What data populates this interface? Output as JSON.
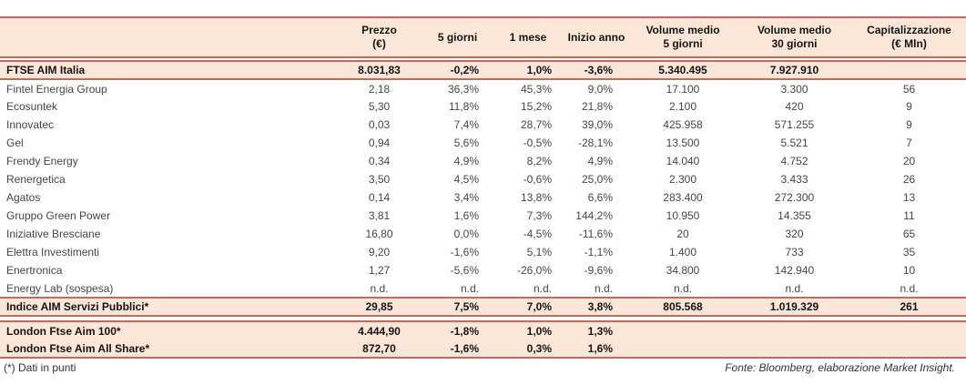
{
  "colors": {
    "accent_border": "#c5695a",
    "row_highlight_bg": "#fce6d7"
  },
  "table": {
    "columns": [
      {
        "id": "name",
        "lines": [
          "",
          ""
        ]
      },
      {
        "id": "prezzo",
        "lines": [
          "Prezzo",
          "(€)"
        ]
      },
      {
        "id": "cinque_giorni",
        "lines": [
          "5 giorni"
        ]
      },
      {
        "id": "un_mese",
        "lines": [
          "1 mese"
        ]
      },
      {
        "id": "inizio_anno",
        "lines": [
          "Inizio anno"
        ]
      },
      {
        "id": "volume_medio_5",
        "lines": [
          "Volume medio",
          "5 giorni"
        ]
      },
      {
        "id": "volume_medio_30",
        "lines": [
          "Volume medio",
          "30 giorni"
        ]
      },
      {
        "id": "capitalizzazione",
        "lines": [
          "Capitalizzazione",
          "(€ Mln)"
        ]
      }
    ],
    "sections": [
      {
        "style": "highlight",
        "gap_before": 4,
        "rows": [
          [
            "FTSE AIM Italia",
            "8.031,83",
            "-0,2%",
            "1,0%",
            "-3,6%",
            "5.340.495",
            "7.927.910",
            ""
          ]
        ]
      },
      {
        "style": "plain",
        "gap_before": 0,
        "rows": [
          [
            "Fintel Energia Group",
            "2,18",
            "36,3%",
            "45,3%",
            "9,0%",
            "17.100",
            "3.300",
            "56"
          ],
          [
            "Ecosuntek",
            "5,30",
            "11,8%",
            "15,2%",
            "21,8%",
            "2.100",
            "420",
            "9"
          ],
          [
            "Innovatec",
            "0,03",
            "7,4%",
            "28,7%",
            "39,0%",
            "425.958",
            "571.255",
            "9"
          ],
          [
            "Gel",
            "0,94",
            "5,6%",
            "-0,5%",
            "-28,1%",
            "13.500",
            "5.521",
            "7"
          ],
          [
            "Frendy Energy",
            "0,34",
            "4,9%",
            "8,2%",
            "4,9%",
            "14.040",
            "4.752",
            "20"
          ],
          [
            "Renergetica",
            "3,50",
            "4,5%",
            "-0,6%",
            "25,0%",
            "2.300",
            "3.433",
            "26"
          ],
          [
            "Agatos",
            "0,14",
            "3,4%",
            "13,8%",
            "6,6%",
            "283.400",
            "272.300",
            "13"
          ],
          [
            "Gruppo Green Power",
            "3,81",
            "1,6%",
            "7,3%",
            "144,2%",
            "10.950",
            "14.355",
            "11"
          ],
          [
            "Iniziative Bresciane",
            "16,80",
            "0,0%",
            "-4,5%",
            "-11,6%",
            "20",
            "320",
            "65"
          ],
          [
            "Elettra Investimenti",
            "9,20",
            "-1,6%",
            "5,1%",
            "-1,1%",
            "1.400",
            "733",
            "35"
          ],
          [
            "Enertronica",
            "1,27",
            "-5,6%",
            "-26,0%",
            "-9,6%",
            "34.800",
            "142.940",
            "10"
          ],
          [
            "Energy Lab (sospesa)",
            "n.d.",
            "n.d.",
            "n.d.",
            "n.d.",
            "n.d.",
            "n.d.",
            "n.d."
          ]
        ]
      },
      {
        "style": "highlight",
        "gap_before": 0,
        "rows": [
          [
            "Indice AIM Servizi Pubblici*",
            "29,85",
            "7,5%",
            "7,0%",
            "3,8%",
            "805.568",
            "1.019.329",
            "261"
          ]
        ]
      },
      {
        "style": "highlight",
        "gap_before": 6,
        "rows": [
          [
            "London Ftse Aim 100*",
            "4.444,90",
            "-1,8%",
            "1,0%",
            "1,3%",
            "",
            "",
            ""
          ],
          [
            "London Ftse Aim All Share*",
            "872,70",
            "-1,6%",
            "0,3%",
            "1,6%",
            "",
            "",
            ""
          ]
        ]
      }
    ]
  },
  "footer": {
    "note": "(*) Dati in punti",
    "source": "Fonte: Bloomberg, elaborazione Market Insight."
  }
}
